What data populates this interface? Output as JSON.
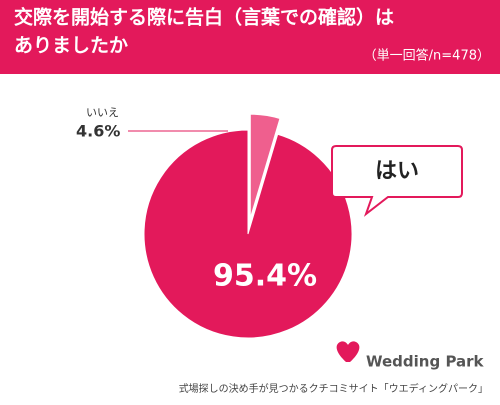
{
  "chart_data": {
    "type": "pie",
    "title": [
      "交際を開始する際に告白（言葉での確認）は",
      "ありましたか"
    ],
    "subtitle": "（単一回答/n=478）",
    "categories": [
      "はい",
      "いいえ"
    ],
    "values": [
      95.4,
      4.6
    ],
    "value_labels": [
      "95.4%",
      "4.6%"
    ],
    "colors": [
      "#e3195b",
      "#ef5f8e"
    ]
  },
  "footer": {
    "brand": "Wedding Park",
    "tagline": "式場探しの決め手が見つかるクチコミサイト「ウエディングパーク」"
  }
}
